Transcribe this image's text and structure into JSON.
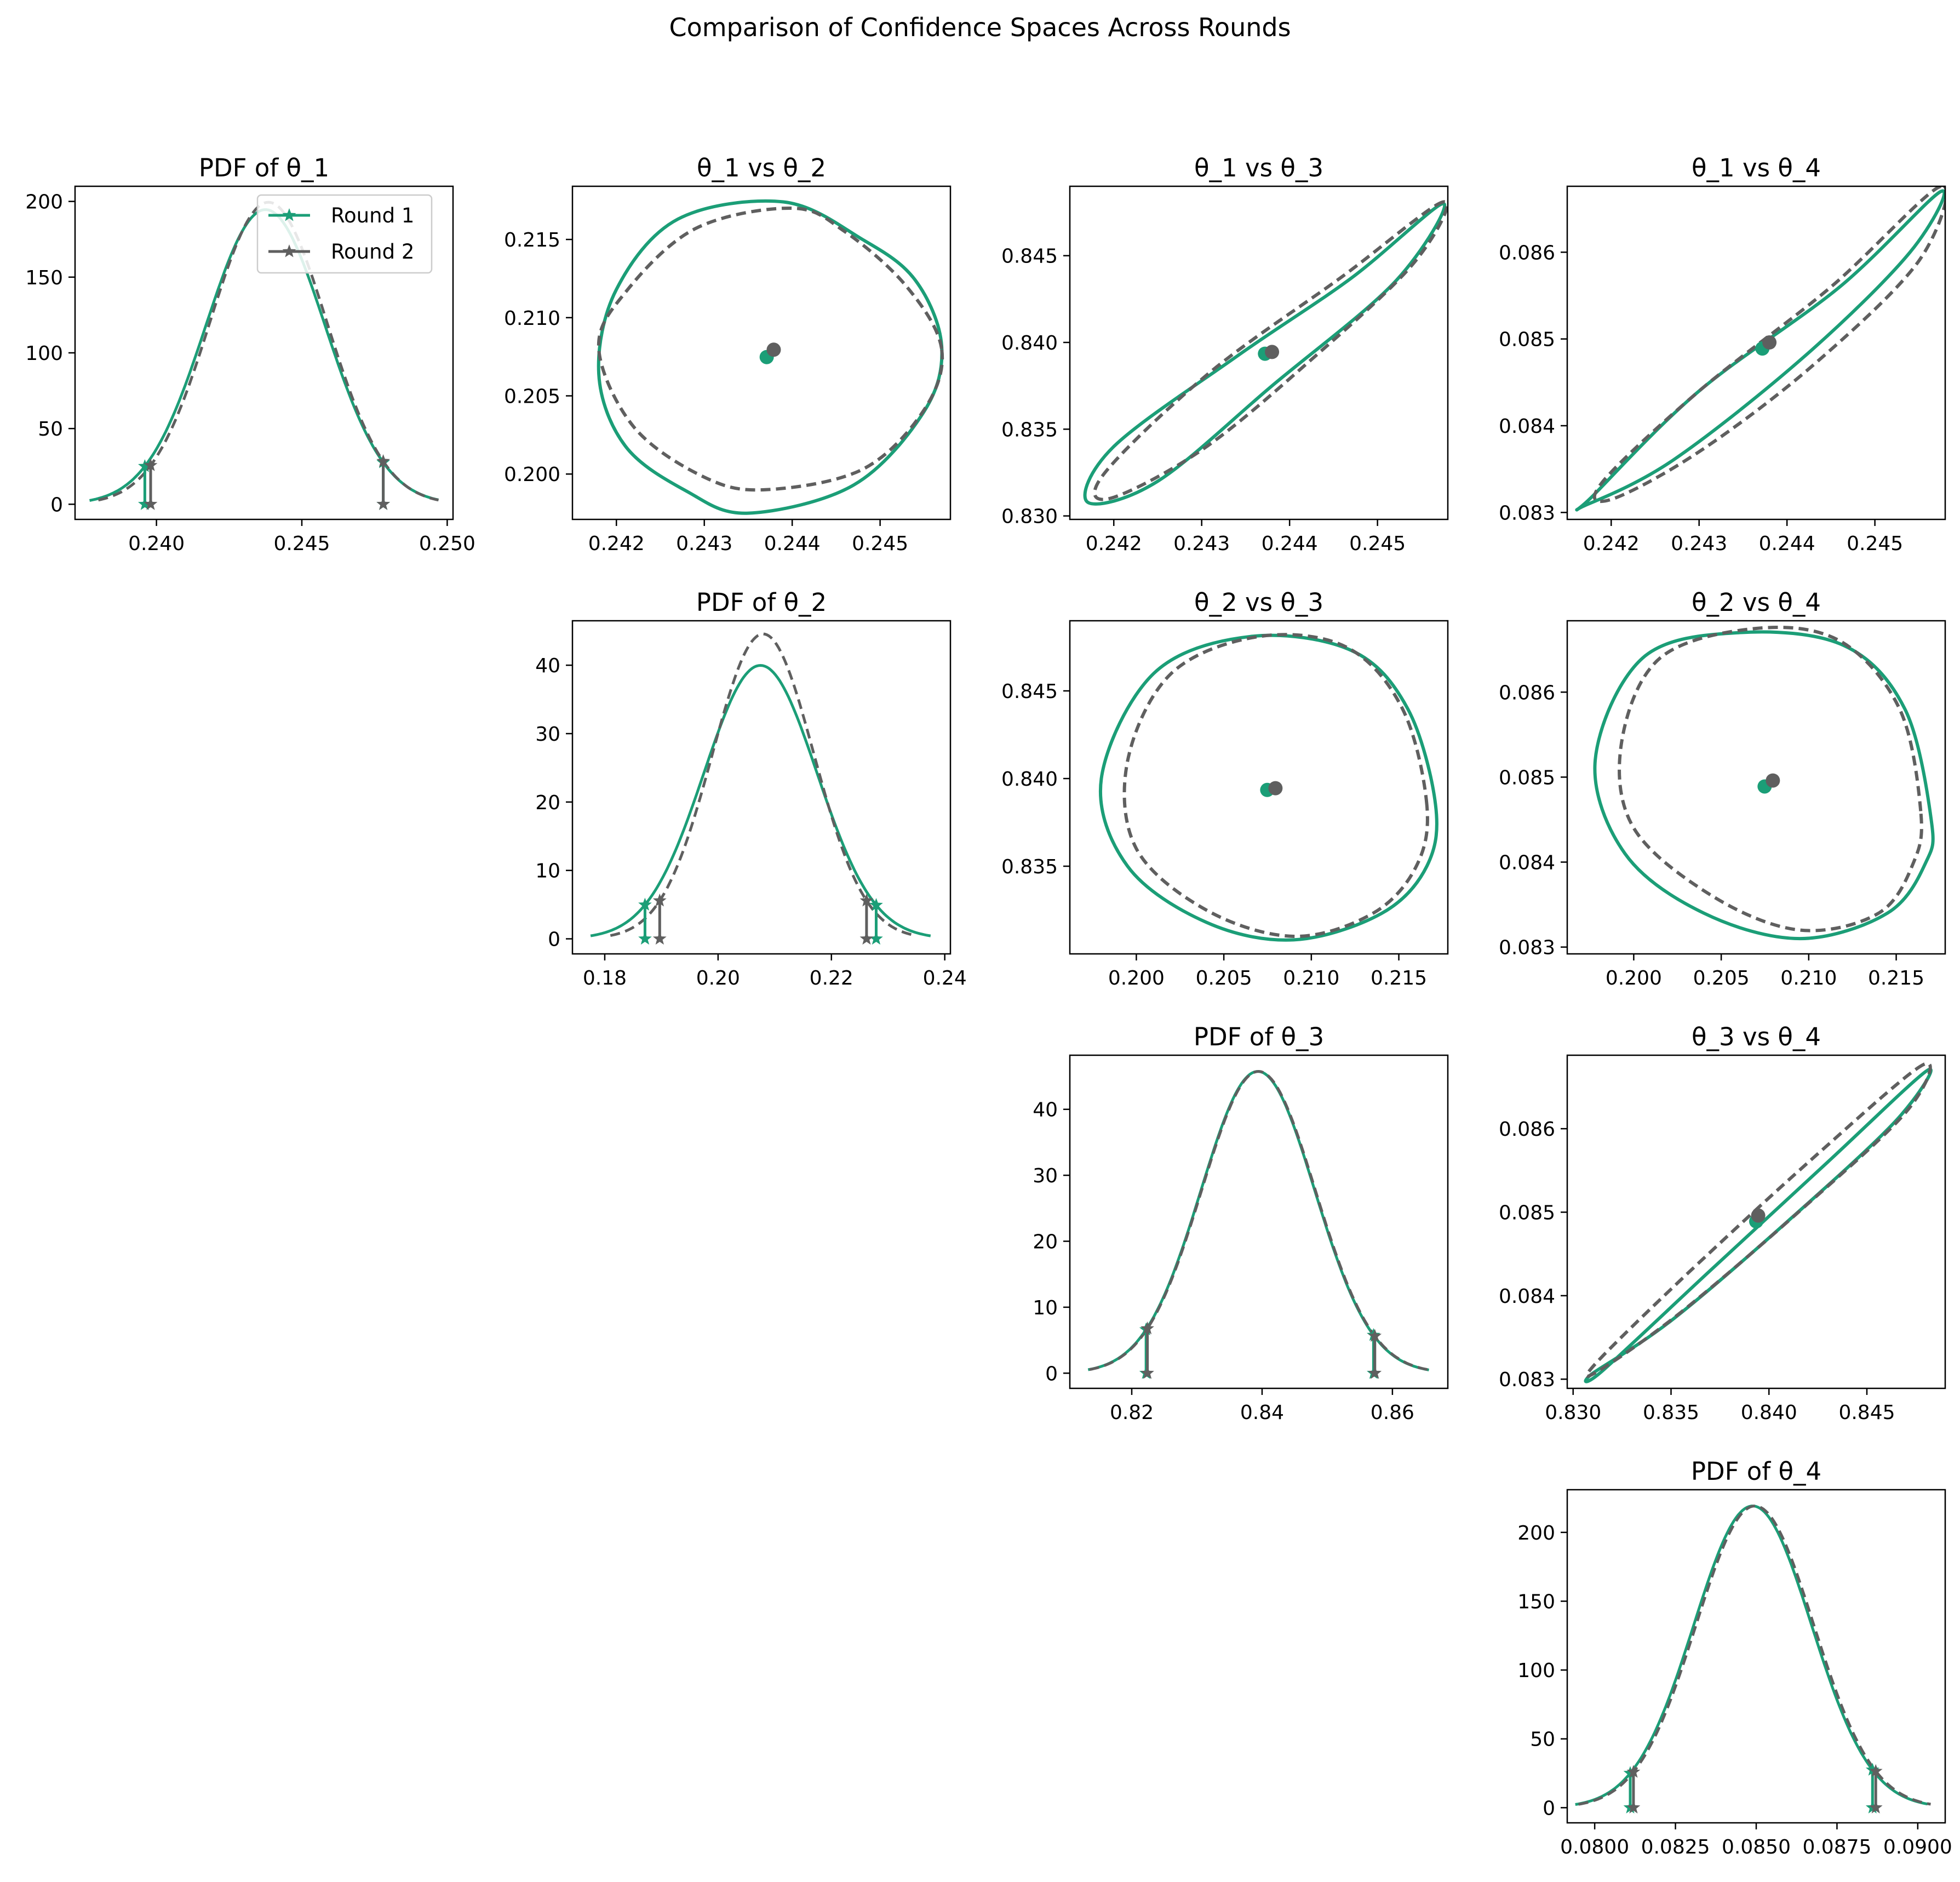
{
  "figure": {
    "suptitle": "Comparison of Confidence Spaces Across Rounds"
  },
  "colors": {
    "round1": "#1b9e77",
    "round2": "#5f5f5f"
  },
  "legend": {
    "placement": "upper right of first panel",
    "entries": [
      {
        "label": "Round 1",
        "color": "#1b9e77",
        "marker": "star",
        "line": "solid"
      },
      {
        "label": "Round 2",
        "color": "#5f5f5f",
        "marker": "star",
        "line": "solid"
      }
    ]
  },
  "chart_data": [
    {
      "id": "pdf1",
      "type": "line",
      "title": "PDF of θ_1",
      "xlim": [
        0.2372,
        0.2502
      ],
      "ylim": [
        -10,
        210
      ],
      "xticks": [
        0.24,
        0.245,
        0.25
      ],
      "xtick_labels": [
        "0.240",
        "0.245",
        "0.250"
      ],
      "yticks": [
        0,
        50,
        100,
        150,
        200
      ],
      "ytick_labels": [
        "0",
        "50",
        "100",
        "150",
        "200"
      ],
      "series": [
        {
          "name": "Round 1",
          "color": "#1b9e77",
          "dash": "solid",
          "mean": 0.24375,
          "sd": 0.00205,
          "range": [
            0.2377,
            0.2497
          ],
          "ci": [
            0.2396,
            0.2478
          ]
        },
        {
          "name": "Round 2",
          "color": "#5f5f5f",
          "dash": "dashed",
          "mean": 0.24385,
          "sd": 0.002,
          "range": [
            0.238,
            0.2497
          ],
          "ci": [
            0.2398,
            0.2478
          ]
        }
      ]
    },
    {
      "id": "e12",
      "type": "scatter",
      "title": "θ_1 vs θ_2",
      "xlim": [
        0.2415,
        0.2458
      ],
      "ylim": [
        0.1971,
        0.2184
      ],
      "xticks": [
        0.242,
        0.243,
        0.244,
        0.245
      ],
      "xtick_labels": [
        "0.242",
        "0.243",
        "0.244",
        "0.245"
      ],
      "yticks": [
        0.2,
        0.205,
        0.21,
        0.215
      ],
      "ytick_labels": [
        "0.200",
        "0.205",
        "0.210",
        "0.215"
      ],
      "series": [
        {
          "name": "Round 1",
          "color": "#1b9e77",
          "dash": "solid",
          "center": [
            0.24371,
            0.20748
          ],
          "points": [
            [
              0.2457,
              0.2082
            ],
            [
              0.2454,
              0.2124
            ],
            [
              0.2448,
              0.215
            ],
            [
              0.2439,
              0.2174
            ],
            [
              0.2427,
              0.2163
            ],
            [
              0.242,
              0.2118
            ],
            [
              0.2418,
              0.2064
            ],
            [
              0.2421,
              0.2018
            ],
            [
              0.2428,
              0.1989
            ],
            [
              0.2435,
              0.1975
            ],
            [
              0.2447,
              0.1993
            ],
            [
              0.2455,
              0.204
            ]
          ]
        },
        {
          "name": "Round 2",
          "color": "#5f5f5f",
          "dash": "dashed",
          "center": [
            0.24379,
            0.20795
          ],
          "points": [
            [
              0.2457,
              0.208
            ],
            [
              0.2453,
              0.212
            ],
            [
              0.2446,
              0.2155
            ],
            [
              0.244,
              0.217
            ],
            [
              0.2429,
              0.2157
            ],
            [
              0.2421,
              0.2116
            ],
            [
              0.2418,
              0.208
            ],
            [
              0.2422,
              0.203
            ],
            [
              0.243,
              0.1998
            ],
            [
              0.2437,
              0.199
            ],
            [
              0.2448,
              0.2003
            ],
            [
              0.2455,
              0.2041
            ]
          ]
        }
      ]
    },
    {
      "id": "e13",
      "type": "scatter",
      "title": "θ_1 vs θ_3",
      "xlim": [
        0.2415,
        0.2458
      ],
      "ylim": [
        0.8298,
        0.849
      ],
      "xticks": [
        0.242,
        0.243,
        0.244,
        0.245
      ],
      "xtick_labels": [
        "0.242",
        "0.243",
        "0.244",
        "0.245"
      ],
      "yticks": [
        0.83,
        0.835,
        0.84,
        0.845
      ],
      "ytick_labels": [
        "0.830",
        "0.835",
        "0.840",
        "0.845"
      ],
      "series": [
        {
          "name": "Round 1",
          "color": "#1b9e77",
          "dash": "solid",
          "center": [
            0.24372,
            0.83935
          ],
          "points": [
            [
              0.24575,
              0.848
            ],
            [
              0.2447,
              0.8437
            ],
            [
              0.2434,
              0.8392
            ],
            [
              0.242,
              0.834
            ],
            [
              0.2417,
              0.8308
            ],
            [
              0.2425,
              0.832
            ],
            [
              0.2438,
              0.8375
            ],
            [
              0.2452,
              0.8435
            ]
          ]
        },
        {
          "name": "Round 2",
          "color": "#5f5f5f",
          "dash": "dashed",
          "center": [
            0.2438,
            0.83945
          ],
          "points": [
            [
              0.24575,
              0.8481
            ],
            [
              0.2446,
              0.8438
            ],
            [
              0.2431,
              0.8383
            ],
            [
              0.2419,
              0.8325
            ],
            [
              0.24195,
              0.831
            ],
            [
              0.243,
              0.8338
            ],
            [
              0.2442,
              0.8388
            ],
            [
              0.2454,
              0.8445
            ]
          ]
        }
      ]
    },
    {
      "id": "e14",
      "type": "scatter",
      "title": "θ_1 vs θ_4",
      "xlim": [
        0.2415,
        0.2458
      ],
      "ylim": [
        0.08292,
        0.08676
      ],
      "xticks": [
        0.242,
        0.243,
        0.244,
        0.245
      ],
      "xtick_labels": [
        "0.242",
        "0.243",
        "0.244",
        "0.245"
      ],
      "yticks": [
        0.083,
        0.084,
        0.085,
        0.086
      ],
      "ytick_labels": [
        "0.083",
        "0.084",
        "0.085",
        "0.086"
      ],
      "series": [
        {
          "name": "Round 1",
          "color": "#1b9e77",
          "dash": "solid",
          "center": [
            0.24372,
            0.08489
          ],
          "points": [
            [
              0.24575,
              0.0867
            ],
            [
              0.2446,
              0.0856
            ],
            [
              0.243,
              0.0844
            ],
            [
              0.2418,
              0.0832
            ],
            [
              0.2417,
              0.08308
            ],
            [
              0.2427,
              0.0836
            ],
            [
              0.2442,
              0.0848
            ],
            [
              0.2454,
              0.086
            ]
          ]
        },
        {
          "name": "Round 2",
          "color": "#5f5f5f",
          "dash": "dashed",
          "center": [
            0.2438,
            0.08496
          ],
          "points": [
            [
              0.24575,
              0.08676
            ],
            [
              0.2445,
              0.0856
            ],
            [
              0.243,
              0.0844
            ],
            [
              0.2419,
              0.08335
            ],
            [
              0.242,
              0.08315
            ],
            [
              0.243,
              0.0837
            ],
            [
              0.2443,
              0.0847
            ],
            [
              0.2455,
              0.0859
            ]
          ]
        }
      ]
    },
    {
      "id": "pdf2",
      "type": "line",
      "title": "PDF of θ_2",
      "xlim": [
        0.1743,
        0.241
      ],
      "ylim": [
        -2.2,
        46.5
      ],
      "xticks": [
        0.18,
        0.2,
        0.22,
        0.24
      ],
      "xtick_labels": [
        "0.18",
        "0.20",
        "0.22",
        "0.24"
      ],
      "yticks": [
        0,
        10,
        20,
        30,
        40
      ],
      "ytick_labels": [
        "0",
        "10",
        "20",
        "30",
        "40"
      ],
      "series": [
        {
          "name": "Round 1",
          "color": "#1b9e77",
          "dash": "solid",
          "mean": 0.20748,
          "sd": 0.00998,
          "range": [
            0.1775,
            0.2375
          ],
          "ci": [
            0.1871,
            0.2279
          ]
        },
        {
          "name": "Round 2",
          "color": "#5f5f5f",
          "dash": "dashed",
          "mean": 0.20795,
          "sd": 0.00895,
          "range": [
            0.181,
            0.235
          ],
          "ci": [
            0.1897,
            0.2262
          ]
        }
      ]
    },
    {
      "id": "e23",
      "type": "scatter",
      "title": "θ_2 vs θ_3",
      "xlim": [
        0.1962,
        0.2178
      ],
      "ylim": [
        0.83,
        0.849
      ],
      "xticks": [
        0.2,
        0.205,
        0.21,
        0.215
      ],
      "xtick_labels": [
        "0.200",
        "0.205",
        "0.210",
        "0.215"
      ],
      "yticks": [
        0.835,
        0.84,
        0.845
      ],
      "ytick_labels": [
        "0.835",
        "0.840",
        "0.845"
      ],
      "series": [
        {
          "name": "Round 1",
          "color": "#1b9e77",
          "dash": "solid",
          "center": [
            0.20748,
            0.83935
          ],
          "points": [
            [
              0.2171,
              0.8385
            ],
            [
              0.2155,
              0.844
            ],
            [
              0.2123,
              0.8473
            ],
            [
              0.2065,
              0.8481
            ],
            [
              0.201,
              0.846
            ],
            [
              0.198,
              0.84
            ],
            [
              0.1995,
              0.835
            ],
            [
              0.204,
              0.8318
            ],
            [
              0.209,
              0.8308
            ],
            [
              0.214,
              0.8323
            ],
            [
              0.2166,
              0.835
            ]
          ]
        },
        {
          "name": "Round 2",
          "color": "#5f5f5f",
          "dash": "dashed",
          "center": [
            0.20795,
            0.83945
          ],
          "points": [
            [
              0.2166,
              0.8385
            ],
            [
              0.2152,
              0.844
            ],
            [
              0.212,
              0.8475
            ],
            [
              0.207,
              0.8481
            ],
            [
              0.202,
              0.846
            ],
            [
              0.1995,
              0.841
            ],
            [
              0.2,
              0.836
            ],
            [
              0.204,
              0.8325
            ],
            [
              0.209,
              0.831
            ],
            [
              0.2135,
              0.8323
            ],
            [
              0.216,
              0.835
            ]
          ]
        }
      ]
    },
    {
      "id": "e24",
      "type": "scatter",
      "title": "θ_2 vs θ_4",
      "xlim": [
        0.1962,
        0.2178
      ],
      "ylim": [
        0.08292,
        0.08684
      ],
      "xticks": [
        0.2,
        0.205,
        0.21,
        0.215
      ],
      "xtick_labels": [
        "0.200",
        "0.205",
        "0.210",
        "0.215"
      ],
      "yticks": [
        0.083,
        0.084,
        0.085,
        0.086
      ],
      "ytick_labels": [
        "0.083",
        "0.084",
        "0.085",
        "0.086"
      ],
      "series": [
        {
          "name": "Round 1",
          "color": "#1b9e77",
          "dash": "solid",
          "center": [
            0.20748,
            0.08489
          ],
          "points": [
            [
              0.217,
              0.0845
            ],
            [
              0.2155,
              0.0858
            ],
            [
              0.212,
              0.08655
            ],
            [
              0.206,
              0.0867
            ],
            [
              0.2005,
              0.0864
            ],
            [
              0.1978,
              0.0852
            ],
            [
              0.1995,
              0.0841
            ],
            [
              0.204,
              0.0834
            ],
            [
              0.2095,
              0.0831
            ],
            [
              0.2145,
              0.0834
            ],
            [
              0.2167,
              0.084
            ]
          ]
        },
        {
          "name": "Round 2",
          "color": "#5f5f5f",
          "dash": "dashed",
          "center": [
            0.20795,
            0.08496
          ],
          "points": [
            [
              0.2164,
              0.0846
            ],
            [
              0.2152,
              0.0858
            ],
            [
              0.2118,
              0.0866
            ],
            [
              0.207,
              0.08675
            ],
            [
              0.2015,
              0.0864
            ],
            [
              0.1993,
              0.0854
            ],
            [
              0.2,
              0.0844
            ],
            [
              0.2045,
              0.0836
            ],
            [
              0.2095,
              0.0832
            ],
            [
              0.214,
              0.0834
            ],
            [
              0.216,
              0.084
            ]
          ]
        }
      ]
    },
    {
      "id": "pdf3",
      "type": "line",
      "title": "PDF of θ_3",
      "xlim": [
        0.8105,
        0.8685
      ],
      "ylim": [
        -2.3,
        48.2
      ],
      "xticks": [
        0.82,
        0.84,
        0.86
      ],
      "xtick_labels": [
        "0.82",
        "0.84",
        "0.86"
      ],
      "yticks": [
        0,
        10,
        20,
        30,
        40
      ],
      "ytick_labels": [
        "0",
        "10",
        "20",
        "30",
        "40"
      ],
      "series": [
        {
          "name": "Round 1",
          "color": "#1b9e77",
          "dash": "solid",
          "mean": 0.83935,
          "sd": 0.00872,
          "range": [
            0.8133,
            0.8656
          ],
          "ci": [
            0.8222,
            0.8571
          ]
        },
        {
          "name": "Round 2",
          "color": "#5f5f5f",
          "dash": "dashed",
          "mean": 0.83945,
          "sd": 0.00872,
          "range": [
            0.8135,
            0.8655
          ],
          "ci": [
            0.8224,
            0.8573
          ]
        }
      ]
    },
    {
      "id": "e34",
      "type": "scatter",
      "title": "θ_3 vs θ_4",
      "xlim": [
        0.8297,
        0.849
      ],
      "ylim": [
        0.08289,
        0.08688
      ],
      "xticks": [
        0.83,
        0.835,
        0.84,
        0.845
      ],
      "xtick_labels": [
        "0.830",
        "0.835",
        "0.840",
        "0.845"
      ],
      "yticks": [
        0.083,
        0.084,
        0.085,
        0.086
      ],
      "ytick_labels": [
        "0.083",
        "0.084",
        "0.085",
        "0.086"
      ],
      "series": [
        {
          "name": "Round 1",
          "color": "#1b9e77",
          "dash": "solid",
          "center": [
            0.83935,
            0.08489
          ],
          "points": [
            [
              0.8481,
              0.0867
            ],
            [
              0.843,
              0.0856
            ],
            [
              0.837,
              0.0843
            ],
            [
              0.8315,
              0.0831
            ],
            [
              0.831,
              0.08307
            ],
            [
              0.835,
              0.0837
            ],
            [
              0.841,
              0.0849
            ],
            [
              0.8465,
              0.0861
            ]
          ]
        },
        {
          "name": "Round 2",
          "color": "#5f5f5f",
          "dash": "dashed",
          "center": [
            0.83945,
            0.08496
          ],
          "points": [
            [
              0.8479,
              0.08677
            ],
            [
              0.8425,
              0.0857
            ],
            [
              0.836,
              0.0843
            ],
            [
              0.8312,
              0.0832
            ],
            [
              0.8313,
              0.0831
            ],
            [
              0.8355,
              0.0838
            ],
            [
              0.8415,
              0.085
            ],
            [
              0.847,
              0.0862
            ]
          ]
        }
      ]
    },
    {
      "id": "pdf4",
      "type": "line",
      "title": "PDF of θ_4",
      "xlim": [
        0.07915,
        0.09085
      ],
      "ylim": [
        -11,
        231
      ],
      "xticks": [
        0.08,
        0.0825,
        0.085,
        0.0875,
        0.09
      ],
      "xtick_labels": [
        "0.0800",
        "0.0825",
        "0.0850",
        "0.0875",
        "0.0900"
      ],
      "yticks": [
        0,
        50,
        100,
        150,
        200
      ],
      "ytick_labels": [
        "0",
        "50",
        "100",
        "150",
        "200"
      ],
      "series": [
        {
          "name": "Round 1",
          "color": "#1b9e77",
          "dash": "solid",
          "mean": 0.08489,
          "sd": 0.00182,
          "range": [
            0.0794,
            0.0903
          ],
          "ci": [
            0.0811,
            0.0886
          ]
        },
        {
          "name": "Round 2",
          "color": "#5f5f5f",
          "dash": "dashed",
          "mean": 0.08496,
          "sd": 0.00182,
          "range": [
            0.0795,
            0.0904
          ],
          "ci": [
            0.0812,
            0.0887
          ]
        }
      ]
    }
  ]
}
